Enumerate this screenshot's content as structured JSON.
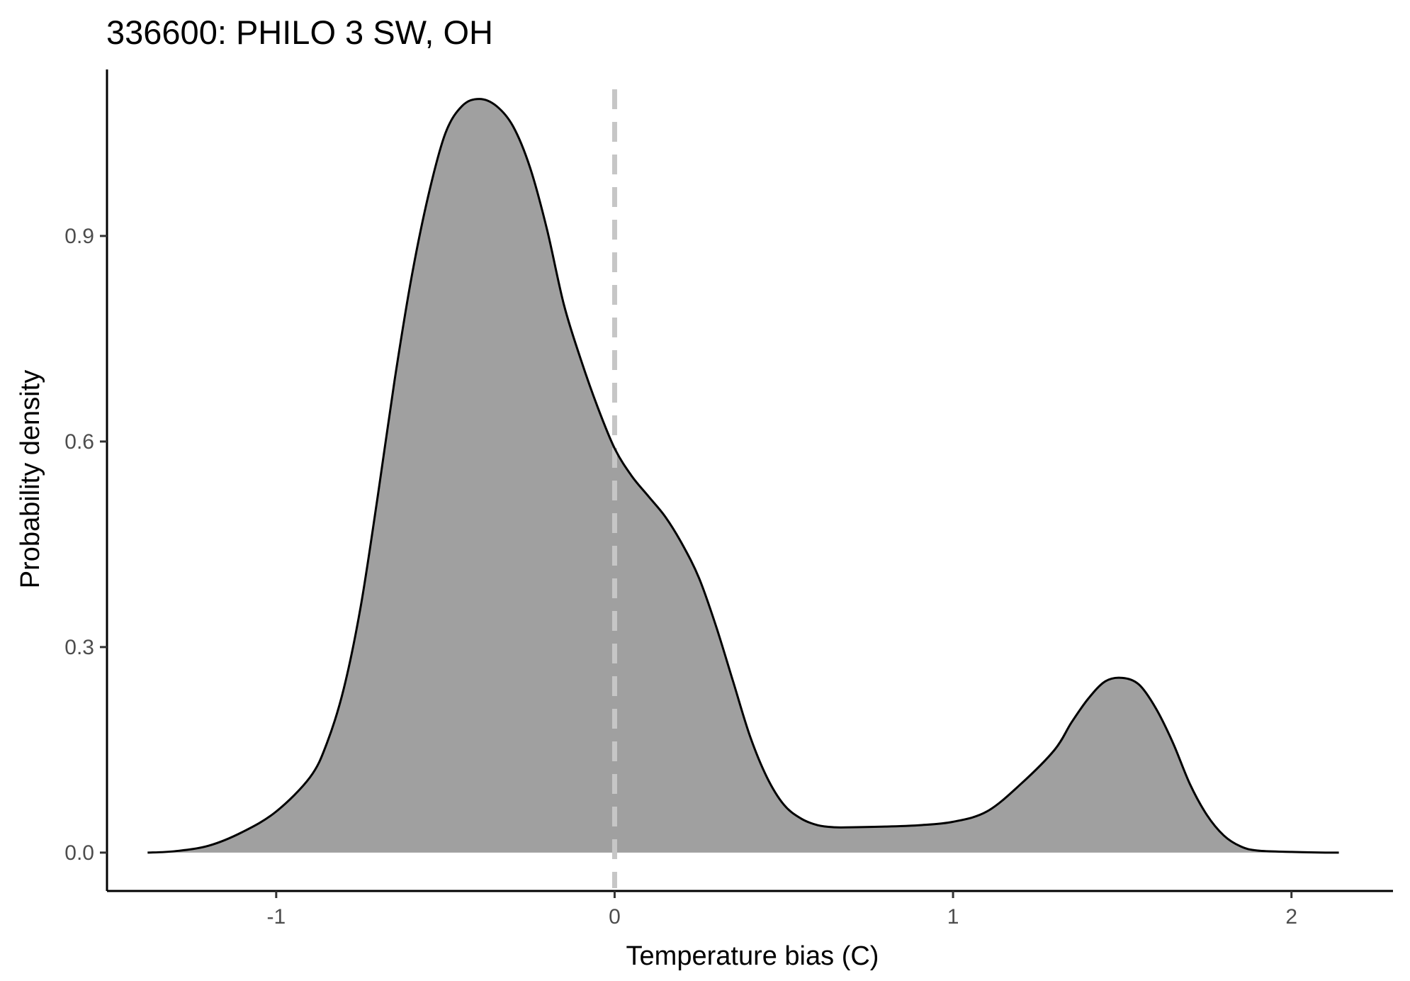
{
  "chart_data": {
    "type": "area",
    "title": "336600: PHILO 3 SW, OH",
    "xlabel": "Temperature bias (C)",
    "ylabel": "Probability density",
    "xlim": [
      -1.5,
      2.3
    ],
    "ylim": [
      -0.056,
      1.143
    ],
    "x_ticks": [
      -1,
      0,
      1,
      2
    ],
    "x_tick_labels": [
      "-1",
      "0",
      "1",
      "2"
    ],
    "y_ticks": [
      0.0,
      0.3,
      0.6,
      0.9
    ],
    "y_tick_labels": [
      "0.0",
      "0.3",
      "0.6",
      "0.9"
    ],
    "grid": false,
    "legend": "none",
    "reference_line": {
      "x": 0,
      "style": "dashed",
      "color": "#c6c6c6"
    },
    "fill_color": "#a0a0a0",
    "line_color": "#000000",
    "series": [
      {
        "x": [
          -1.38,
          -1.3,
          -1.2,
          -1.1,
          -1.0,
          -0.9,
          -0.85,
          -0.8,
          -0.75,
          -0.7,
          -0.65,
          -0.6,
          -0.55,
          -0.5,
          -0.45,
          -0.4,
          -0.35,
          -0.3,
          -0.25,
          -0.2,
          -0.15,
          -0.1,
          -0.05,
          0.0,
          0.05,
          0.1,
          0.15,
          0.2,
          0.25,
          0.3,
          0.35,
          0.4,
          0.45,
          0.5,
          0.55,
          0.6,
          0.65,
          0.7,
          0.8,
          0.9,
          1.0,
          1.1,
          1.2,
          1.3,
          1.35,
          1.4,
          1.45,
          1.5,
          1.55,
          1.6,
          1.65,
          1.7,
          1.75,
          1.8,
          1.85,
          1.9,
          2.0,
          2.1,
          2.14
        ],
        "y": [
          0.0,
          0.002,
          0.01,
          0.03,
          0.06,
          0.11,
          0.16,
          0.24,
          0.36,
          0.52,
          0.69,
          0.84,
          0.96,
          1.05,
          1.09,
          1.1,
          1.09,
          1.06,
          1.0,
          0.91,
          0.8,
          0.72,
          0.65,
          0.59,
          0.55,
          0.52,
          0.49,
          0.45,
          0.4,
          0.33,
          0.25,
          0.17,
          0.11,
          0.07,
          0.05,
          0.04,
          0.037,
          0.037,
          0.038,
          0.04,
          0.045,
          0.06,
          0.1,
          0.15,
          0.19,
          0.225,
          0.25,
          0.255,
          0.245,
          0.21,
          0.16,
          0.1,
          0.055,
          0.025,
          0.009,
          0.003,
          0.001,
          0.0,
          0.0
        ]
      }
    ]
  }
}
